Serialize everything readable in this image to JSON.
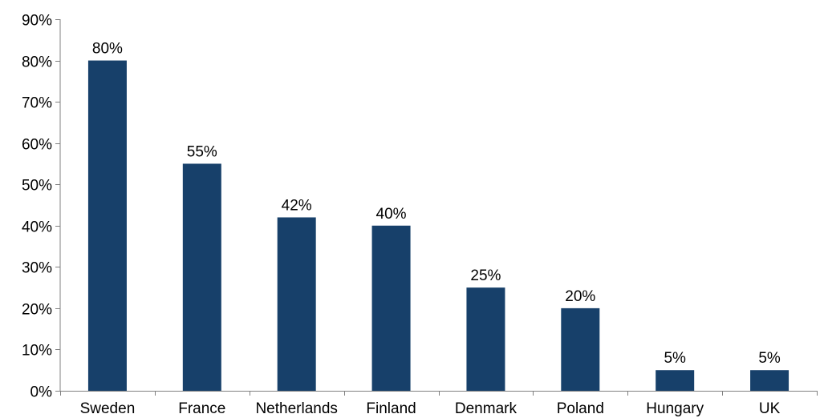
{
  "chart_data": {
    "type": "bar",
    "categories": [
      "Sweden",
      "France",
      "Netherlands",
      "Finland",
      "Denmark",
      "Poland",
      "Hungary",
      "UK"
    ],
    "values": [
      80,
      55,
      42,
      40,
      25,
      20,
      5,
      5
    ],
    "data_labels": [
      "80%",
      "55%",
      "42%",
      "40%",
      "25%",
      "20%",
      "5%",
      "5%"
    ],
    "y_ticks": [
      0,
      10,
      20,
      30,
      40,
      50,
      60,
      70,
      80,
      90
    ],
    "y_tick_labels": [
      "0%",
      "10%",
      "20%",
      "30%",
      "40%",
      "50%",
      "60%",
      "70%",
      "80%",
      "90%"
    ],
    "ylim": [
      0,
      90
    ],
    "title": "",
    "xlabel": "",
    "ylabel": "",
    "grid": false,
    "legend": "none",
    "bar_color": "#17406a",
    "axis_color": "#808080"
  }
}
